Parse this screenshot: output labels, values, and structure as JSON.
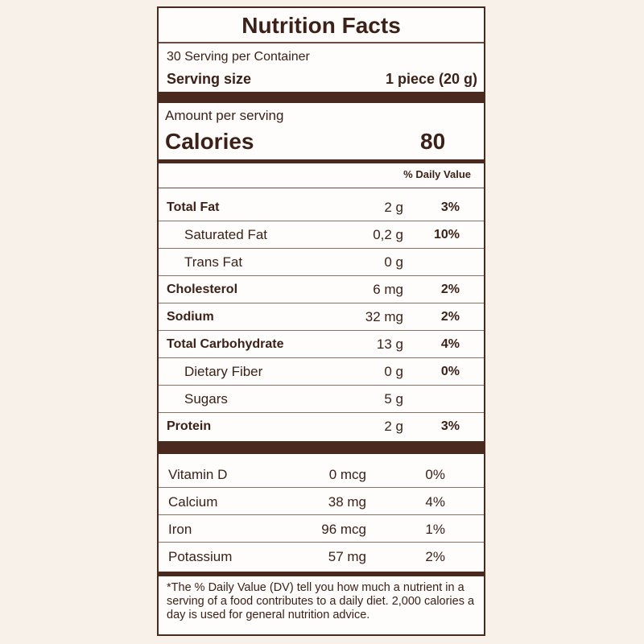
{
  "title": "Nutrition Facts",
  "servings": "30 Serving per Container",
  "serving_size": {
    "label": "Serving size",
    "value": "1 piece (20 g)"
  },
  "amount_per_serving": "Amount per serving",
  "calories": {
    "label": "Calories",
    "value": "80"
  },
  "dv_header": "% Daily Value",
  "nutrients": [
    {
      "name": "Total Fat",
      "amount": "2 g",
      "dv": "3%"
    },
    {
      "name": "Saturated Fat",
      "amount": "0,2 g",
      "dv": "10%"
    },
    {
      "name": "Trans Fat",
      "amount": "0 g"
    },
    {
      "name": "Cholesterol",
      "amount": "6 mg",
      "dv": "2%"
    },
    {
      "name": "Sodium",
      "amount": "32 mg",
      "dv": "2%"
    },
    {
      "name": "Total Carbohydrate",
      "amount": "13 g",
      "dv": "4%"
    },
    {
      "name": "Dietary Fiber",
      "amount": "0 g",
      "dv": "0%"
    },
    {
      "name": "Sugars",
      "amount": "5 g"
    },
    {
      "name": "Protein",
      "amount": "2 g",
      "dv": "3%"
    }
  ],
  "vitamins": [
    {
      "name": "Vitamin D",
      "amount": "0 mcg",
      "dv": "0%"
    },
    {
      "name": "Calcium",
      "amount": "38 mg",
      "dv": "4%"
    },
    {
      "name": "Iron",
      "amount": "96 mcg",
      "dv": "1%"
    },
    {
      "name": "Potassium",
      "amount": "57 mg",
      "dv": "2%"
    }
  ],
  "footnote": "*The % Daily Value (DV) tell you how much a nutrient in a serving of a food contributes to a daily diet. 2,000 calories a day is used for general nutrition advice."
}
